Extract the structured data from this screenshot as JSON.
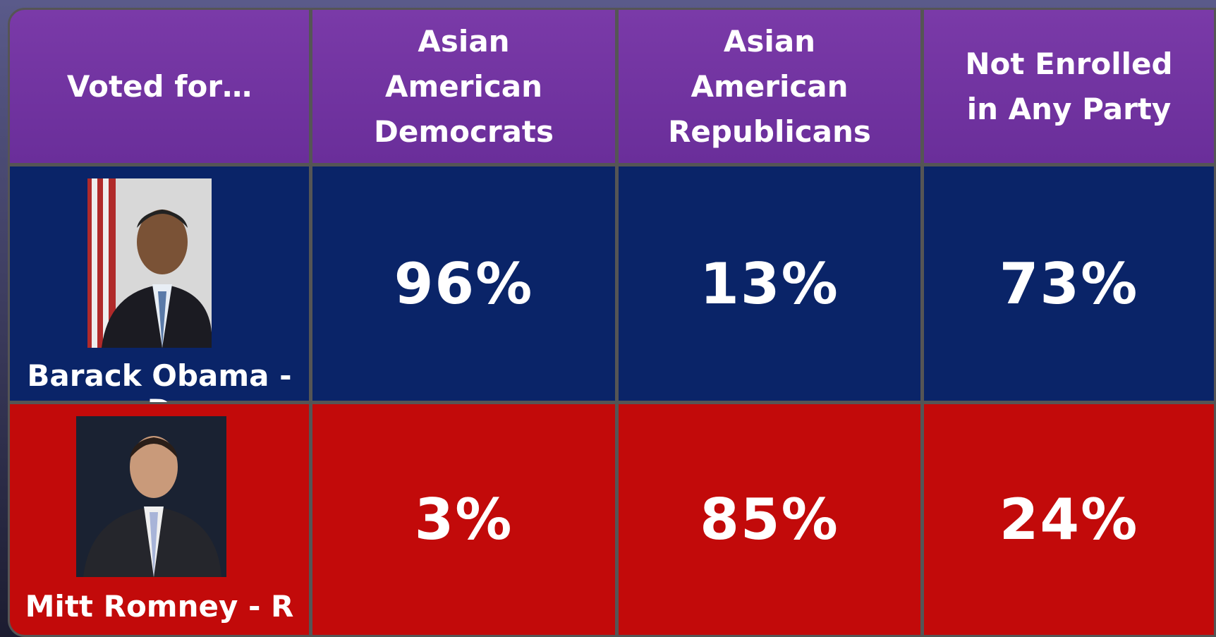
{
  "table": {
    "header": [
      "Voted for…",
      "Asian American Democrats",
      "Asian American Republicans",
      "Not Enrolled in Any Party"
    ],
    "rows": [
      {
        "name": "Barack Obama - D",
        "values": [
          "96%",
          "13%",
          "73%"
        ]
      },
      {
        "name": "Mitt Romney - R",
        "values": [
          "3%",
          "85%",
          "24%"
        ]
      }
    ]
  }
}
